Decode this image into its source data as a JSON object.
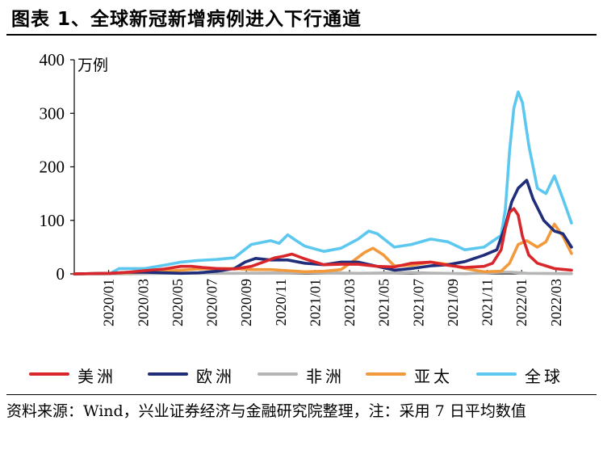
{
  "title": "图表 1、全球新冠新增病例进入下行通道",
  "unit": "万例",
  "source": "资料来源：Wind，兴业证券经济与金融研究院整理，注：采用 7 日平均数值",
  "chart_data": {
    "type": "line",
    "title": "全球新冠新增病例进入下行通道",
    "ylabel": "万例",
    "ylim": [
      0,
      400
    ],
    "yticks": [
      "0",
      "100",
      "200",
      "300",
      "400"
    ],
    "xlim": [
      2020.0,
      2022.33
    ],
    "x_tick_labels": [
      "2020/01",
      "2020/03",
      "2020/05",
      "2020/07",
      "2020/09",
      "2020/11",
      "2021/01",
      "2021/03",
      "2021/05",
      "2021/07",
      "2021/09",
      "2021/11",
      "2022/01",
      "2022/03"
    ],
    "grid": false,
    "legend_position": "bottom",
    "series": [
      {
        "name": "美洲",
        "color": "#d9262a",
        "x": [
          2020.0,
          2020.17,
          2020.25,
          2020.33,
          2020.42,
          2020.5,
          2020.55,
          2020.6,
          2020.67,
          2020.75,
          2020.83,
          2020.9,
          2020.94,
          2020.98,
          2021.02,
          2021.08,
          2021.17,
          2021.25,
          2021.33,
          2021.42,
          2021.5,
          2021.58,
          2021.67,
          2021.75,
          2021.83,
          2021.92,
          2021.96,
          2022.0,
          2022.02,
          2022.04,
          2022.06,
          2022.08,
          2022.1,
          2022.13,
          2022.17,
          2022.25,
          2022.33
        ],
        "values": [
          0,
          1,
          3,
          6,
          9,
          14,
          14,
          12,
          10,
          9,
          14,
          24,
          30,
          33,
          37,
          28,
          17,
          18,
          18,
          14,
          13,
          20,
          22,
          16,
          12,
          14,
          20,
          45,
          85,
          115,
          122,
          110,
          70,
          35,
          20,
          10,
          7
        ]
      },
      {
        "name": "欧洲",
        "color": "#1f2d7a",
        "x": [
          2020.0,
          2020.17,
          2020.25,
          2020.33,
          2020.42,
          2020.5,
          2020.58,
          2020.67,
          2020.75,
          2020.8,
          2020.85,
          2020.92,
          2021.0,
          2021.08,
          2021.17,
          2021.25,
          2021.33,
          2021.42,
          2021.5,
          2021.58,
          2021.67,
          2021.75,
          2021.83,
          2021.92,
          2021.98,
          2022.02,
          2022.05,
          2022.08,
          2022.12,
          2022.15,
          2022.2,
          2022.25,
          2022.29,
          2022.33
        ],
        "values": [
          0,
          1,
          3,
          3,
          2,
          1,
          2,
          5,
          10,
          22,
          29,
          26,
          26,
          20,
          17,
          22,
          22,
          14,
          7,
          10,
          15,
          17,
          23,
          35,
          45,
          90,
          135,
          160,
          175,
          140,
          100,
          80,
          75,
          50
        ]
      },
      {
        "name": "非洲",
        "color": "#b5b5b5",
        "x": [
          2020.0,
          2020.25,
          2020.42,
          2020.5,
          2020.58,
          2020.75,
          2021.0,
          2021.08,
          2021.33,
          2021.5,
          2021.58,
          2021.67,
          2021.83,
          2022.0,
          2022.05,
          2022.12,
          2022.33
        ],
        "values": [
          0,
          0,
          1,
          1.5,
          1,
          1,
          2,
          2.5,
          1,
          2,
          2.5,
          1.5,
          0.5,
          3,
          3,
          1,
          0.5
        ]
      },
      {
        "name": "亚太",
        "color": "#f29a3b",
        "x": [
          2020.0,
          2020.17,
          2020.33,
          2020.42,
          2020.5,
          2020.58,
          2020.67,
          2020.75,
          2020.83,
          2020.92,
          2021.0,
          2021.08,
          2021.17,
          2021.25,
          2021.3,
          2021.36,
          2021.4,
          2021.45,
          2021.5,
          2021.58,
          2021.67,
          2021.75,
          2021.83,
          2021.92,
          2022.0,
          2022.04,
          2022.08,
          2022.12,
          2022.17,
          2022.21,
          2022.25,
          2022.29,
          2022.33
        ],
        "values": [
          0,
          1,
          3,
          5,
          7,
          9,
          10,
          10,
          8,
          8,
          6,
          4,
          5,
          8,
          22,
          40,
          48,
          35,
          15,
          16,
          22,
          18,
          10,
          4,
          5,
          20,
          55,
          62,
          50,
          60,
          93,
          70,
          38
        ]
      },
      {
        "name": "全球",
        "color": "#5cc8ef",
        "x": [
          2020.0,
          2020.17,
          2020.21,
          2020.33,
          2020.42,
          2020.5,
          2020.58,
          2020.67,
          2020.75,
          2020.83,
          2020.92,
          2020.96,
          2021.0,
          2021.04,
          2021.08,
          2021.17,
          2021.25,
          2021.33,
          2021.38,
          2021.42,
          2021.5,
          2021.58,
          2021.67,
          2021.75,
          2021.83,
          2021.92,
          2022.0,
          2022.02,
          2022.04,
          2022.06,
          2022.08,
          2022.1,
          2022.13,
          2022.17,
          2022.21,
          2022.25,
          2022.29,
          2022.33
        ],
        "values": [
          0,
          1,
          10,
          10,
          16,
          22,
          25,
          27,
          30,
          55,
          62,
          57,
          73,
          62,
          52,
          42,
          48,
          65,
          80,
          75,
          50,
          55,
          65,
          60,
          45,
          50,
          72,
          120,
          230,
          310,
          340,
          320,
          240,
          160,
          150,
          183,
          140,
          95
        ]
      }
    ]
  }
}
